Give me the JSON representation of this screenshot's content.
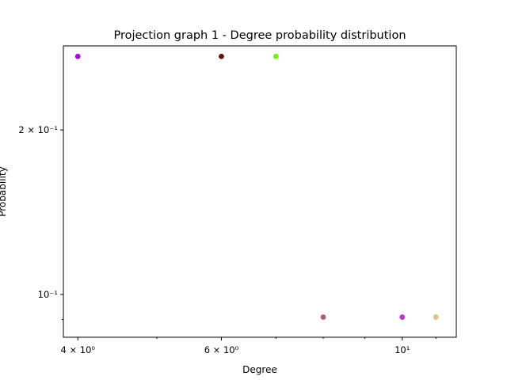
{
  "chart_data": {
    "type": "scatter",
    "title": "Projection graph 1 - Degree probability distribution",
    "xlabel": "Degree",
    "ylabel": "Probability",
    "xscale": "log",
    "yscale": "log",
    "xlim": [
      3.84,
      11.65
    ],
    "ylim": [
      0.0835,
      0.285
    ],
    "grid": false,
    "legend": "none",
    "x_ticks": [
      {
        "value": 4,
        "label": "4 × 10⁰"
      },
      {
        "value": 6,
        "label": "6 × 10⁰"
      },
      {
        "value": 10,
        "label": "10¹"
      }
    ],
    "y_ticks": [
      {
        "value": 0.2,
        "label": "2 × 10⁻¹"
      },
      {
        "value": 0.1,
        "label": "10⁻¹"
      }
    ],
    "points": [
      {
        "x": 4,
        "y": 0.2727,
        "color": "#9b0fd6"
      },
      {
        "x": 6,
        "y": 0.2727,
        "color": "#5a1606"
      },
      {
        "x": 7,
        "y": 0.2727,
        "color": "#74f40c"
      },
      {
        "x": 8,
        "y": 0.0909,
        "color": "#a86274"
      },
      {
        "x": 10,
        "y": 0.0909,
        "color": "#b63ac9"
      },
      {
        "x": 11,
        "y": 0.0909,
        "color": "#e2c383"
      }
    ]
  }
}
